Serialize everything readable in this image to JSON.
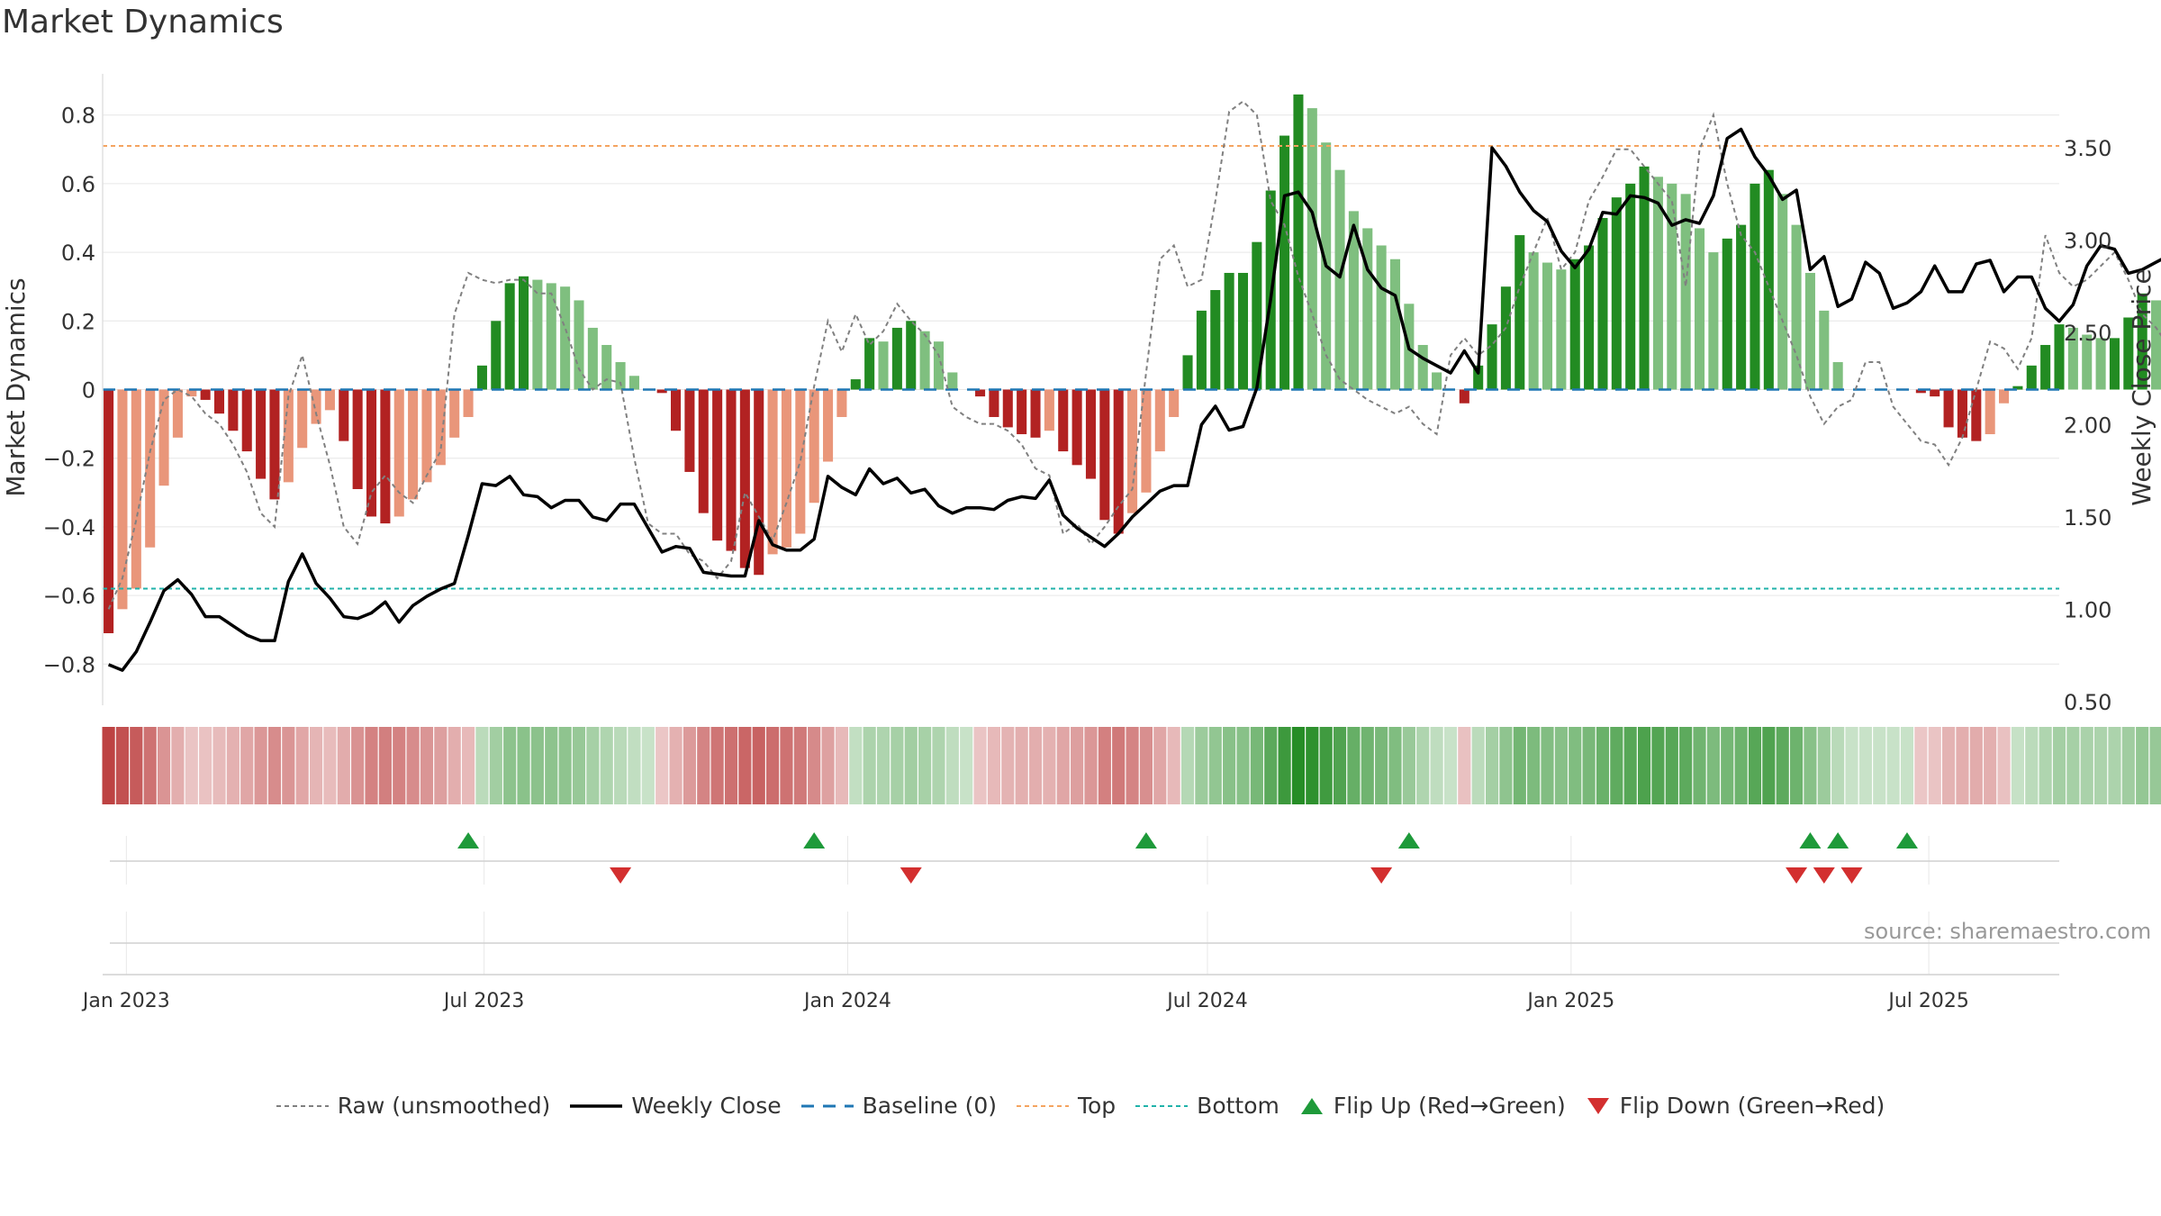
{
  "title": "Market Dynamics",
  "source": "source: sharemaestro.com",
  "legend": {
    "raw": "Raw (unsmoothed)",
    "close": "Weekly Close",
    "baseline": "Baseline (0)",
    "top": "Top",
    "bottom": "Bottom",
    "flip_up": "Flip Up (Red→Green)",
    "flip_down": "Flip Down (Green→Red)"
  },
  "colors": {
    "green_strong": "#228B22",
    "green_light": "#7FBF7F",
    "red_strong": "#B22222",
    "red_light": "#E9967A",
    "close": "#000000",
    "raw": "#808080",
    "baseline": "#1F77B4",
    "top": "#F4A460",
    "bottom": "#20B2AA",
    "flip_up": "#1E9A3A",
    "flip_down": "#D32F2F"
  },
  "chart_data": {
    "type": "bar",
    "ylabel": "Market Dynamics",
    "y2label": "Weekly Close Price",
    "ylim": [
      -0.92,
      0.92
    ],
    "y2lim": [
      0.48,
      3.9
    ],
    "yticks": [
      "−0.8",
      "−0.6",
      "−0.4",
      "−0.2",
      "0",
      "0.2",
      "0.4",
      "0.6",
      "0.8"
    ],
    "y2ticks": [
      "0.50",
      "1.00",
      "1.50",
      "2.00",
      "2.50",
      "3.00",
      "3.50"
    ],
    "xlim": [
      "2022-12-20",
      "2025-09-05"
    ],
    "xticks": [
      {
        "date": "2023-01-01",
        "label": "Jan 2023"
      },
      {
        "date": "2023-07-01",
        "label": "Jul 2023"
      },
      {
        "date": "2024-01-01",
        "label": "Jan 2024"
      },
      {
        "date": "2024-07-01",
        "label": "Jul 2024"
      },
      {
        "date": "2025-01-01",
        "label": "Jan 2025"
      },
      {
        "date": "2025-07-01",
        "label": "Jul 2025"
      }
    ],
    "start_date": "2022-12-23",
    "top": 0.71,
    "bottom": -0.58,
    "baseline": 0,
    "dynamics": [
      -0.71,
      -0.64,
      -0.58,
      -0.46,
      -0.28,
      -0.14,
      -0.02,
      -0.03,
      -0.07,
      -0.12,
      -0.18,
      -0.26,
      -0.32,
      -0.27,
      -0.17,
      -0.1,
      -0.06,
      -0.15,
      -0.29,
      -0.37,
      -0.39,
      -0.37,
      -0.32,
      -0.27,
      -0.22,
      -0.14,
      -0.08,
      0.07,
      0.2,
      0.31,
      0.33,
      0.32,
      0.31,
      0.3,
      0.26,
      0.18,
      0.13,
      0.08,
      0.04,
      0.0,
      -0.01,
      -0.12,
      -0.24,
      -0.36,
      -0.44,
      -0.47,
      -0.52,
      -0.54,
      -0.48,
      -0.46,
      -0.42,
      -0.33,
      -0.21,
      -0.08,
      0.03,
      0.15,
      0.14,
      0.18,
      0.2,
      0.17,
      0.14,
      0.05,
      0.0,
      -0.02,
      -0.08,
      -0.11,
      -0.13,
      -0.14,
      -0.12,
      -0.18,
      -0.22,
      -0.26,
      -0.38,
      -0.42,
      -0.36,
      -0.3,
      -0.18,
      -0.08,
      0.1,
      0.23,
      0.29,
      0.34,
      0.34,
      0.43,
      0.58,
      0.74,
      0.86,
      0.82,
      0.72,
      0.64,
      0.52,
      0.47,
      0.42,
      0.38,
      0.25,
      0.13,
      0.05,
      0.0,
      -0.04,
      0.07,
      0.19,
      0.3,
      0.45,
      0.4,
      0.37,
      0.35,
      0.38,
      0.42,
      0.5,
      0.56,
      0.6,
      0.65,
      0.62,
      0.6,
      0.57,
      0.47,
      0.4,
      0.44,
      0.48,
      0.6,
      0.64,
      0.57,
      0.48,
      0.34,
      0.23,
      0.08,
      0.0,
      0.0,
      0.0,
      0.0,
      0.0,
      -0.01,
      -0.02,
      -0.11,
      -0.14,
      -0.15,
      -0.13,
      -0.04,
      0.01,
      0.07,
      0.13,
      0.19,
      0.18,
      0.16,
      0.15,
      0.15,
      0.21,
      0.28,
      0.26,
      0.22,
      0.18,
      0.17
    ],
    "raw": [
      -0.64,
      -0.55,
      -0.38,
      -0.18,
      -0.03,
      0.0,
      -0.02,
      -0.07,
      -0.1,
      -0.16,
      -0.24,
      -0.36,
      -0.4,
      -0.02,
      0.1,
      -0.07,
      -0.22,
      -0.4,
      -0.45,
      -0.3,
      -0.25,
      -0.3,
      -0.33,
      -0.25,
      -0.18,
      0.22,
      0.34,
      0.32,
      0.31,
      0.32,
      0.32,
      0.28,
      0.28,
      0.18,
      0.06,
      0.0,
      0.03,
      0.02,
      -0.2,
      -0.39,
      -0.42,
      -0.42,
      -0.48,
      -0.5,
      -0.55,
      -0.5,
      -0.3,
      -0.37,
      -0.44,
      -0.33,
      -0.21,
      0.01,
      0.2,
      0.11,
      0.22,
      0.13,
      0.17,
      0.25,
      0.2,
      0.16,
      0.1,
      -0.05,
      -0.08,
      -0.1,
      -0.1,
      -0.12,
      -0.16,
      -0.23,
      -0.25,
      -0.42,
      -0.39,
      -0.45,
      -0.4,
      -0.34,
      -0.29,
      0.05,
      0.38,
      0.42,
      0.3,
      0.32,
      0.55,
      0.81,
      0.84,
      0.8,
      0.55,
      0.48,
      0.33,
      0.22,
      0.1,
      0.03,
      0.0,
      -0.03,
      -0.05,
      -0.07,
      -0.05,
      -0.1,
      -0.13,
      0.1,
      0.15,
      0.1,
      0.13,
      0.18,
      0.3,
      0.4,
      0.5,
      0.35,
      0.4,
      0.55,
      0.62,
      0.7,
      0.7,
      0.65,
      0.6,
      0.55,
      0.3,
      0.7,
      0.8,
      0.6,
      0.45,
      0.4,
      0.3,
      0.2,
      0.1,
      -0.02,
      -0.1,
      -0.05,
      -0.03,
      0.08,
      0.08,
      -0.05,
      -0.1,
      -0.15,
      -0.16,
      -0.22,
      -0.14,
      0.0,
      0.14,
      0.12,
      0.06,
      0.15,
      0.45,
      0.34,
      0.3,
      0.32,
      0.36,
      0.4,
      0.32,
      0.22,
      0.18,
      0.12,
      0.2
    ],
    "close": [
      0.7,
      0.67,
      0.77,
      0.93,
      1.1,
      1.16,
      1.08,
      0.96,
      0.96,
      0.91,
      0.86,
      0.83,
      0.83,
      1.15,
      1.3,
      1.14,
      1.06,
      0.96,
      0.95,
      0.98,
      1.04,
      0.93,
      1.02,
      1.07,
      1.11,
      1.14,
      1.4,
      1.68,
      1.67,
      1.72,
      1.62,
      1.61,
      1.55,
      1.59,
      1.59,
      1.5,
      1.48,
      1.57,
      1.57,
      1.44,
      1.31,
      1.34,
      1.33,
      1.2,
      1.19,
      1.18,
      1.18,
      1.48,
      1.35,
      1.32,
      1.32,
      1.38,
      1.72,
      1.66,
      1.62,
      1.76,
      1.68,
      1.71,
      1.63,
      1.65,
      1.56,
      1.52,
      1.55,
      1.55,
      1.54,
      1.59,
      1.61,
      1.6,
      1.7,
      1.51,
      1.44,
      1.39,
      1.34,
      1.41,
      1.5,
      1.57,
      1.64,
      1.67,
      1.67,
      2.0,
      2.1,
      1.97,
      1.99,
      2.2,
      2.68,
      3.24,
      3.26,
      3.15,
      2.86,
      2.8,
      3.08,
      2.84,
      2.74,
      2.7,
      2.41,
      2.36,
      2.32,
      2.28,
      2.4,
      2.28,
      3.5,
      3.4,
      3.26,
      3.16,
      3.1,
      2.94,
      2.85,
      2.95,
      3.15,
      3.14,
      3.24,
      3.23,
      3.2,
      3.08,
      3.11,
      3.09,
      3.24,
      3.55,
      3.6,
      3.45,
      3.35,
      3.22,
      3.27,
      2.84,
      2.91,
      2.64,
      2.68,
      2.88,
      2.82,
      2.63,
      2.66,
      2.72,
      2.86,
      2.72,
      2.72,
      2.87,
      2.89,
      2.72,
      2.8,
      2.8,
      2.63,
      2.56,
      2.65,
      2.86,
      2.97,
      2.95,
      2.82,
      2.84,
      2.88,
      2.92
    ],
    "flip_up": [
      "2023-06-23",
      "2023-12-15",
      "2024-05-31",
      "2024-10-11",
      "2025-05-02",
      "2025-05-16",
      "2025-06-20"
    ],
    "flip_down": [
      "2023-09-08",
      "2024-02-02",
      "2024-09-27",
      "2025-04-25",
      "2025-05-09",
      "2025-05-23"
    ]
  }
}
